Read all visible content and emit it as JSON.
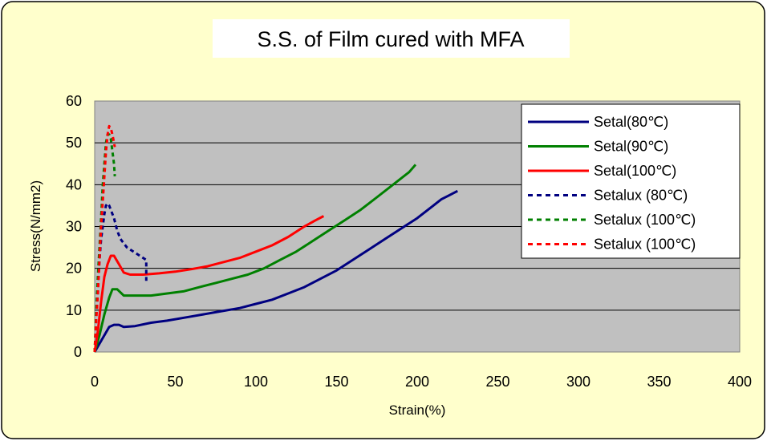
{
  "chart_data": {
    "type": "line",
    "title": "S.S. of Film cured with MFA",
    "xlabel": "Strain(%)",
    "ylabel": "Stress(N/mm2)",
    "xlim": [
      0,
      400
    ],
    "ylim": [
      0,
      60
    ],
    "x_ticks": [
      "0",
      "50",
      "100",
      "150",
      "200",
      "250",
      "300",
      "350",
      "400"
    ],
    "y_ticks": [
      "0",
      "10",
      "20",
      "30",
      "40",
      "50",
      "60"
    ],
    "grid": "horizontal",
    "legend_position": "top-right",
    "plot_background": "#c0c0c0",
    "panel_background": "#ffffcc",
    "series": [
      {
        "name": "Setal(80℃)",
        "color": "#000080",
        "dash": "solid",
        "points": [
          [
            0,
            0
          ],
          [
            3,
            2
          ],
          [
            6,
            4
          ],
          [
            9,
            6
          ],
          [
            12,
            6.5
          ],
          [
            15,
            6.5
          ],
          [
            18,
            6
          ],
          [
            25,
            6.2
          ],
          [
            35,
            7
          ],
          [
            45,
            7.5
          ],
          [
            60,
            8.5
          ],
          [
            75,
            9.5
          ],
          [
            90,
            10.5
          ],
          [
            100,
            11.5
          ],
          [
            110,
            12.5
          ],
          [
            120,
            14
          ],
          [
            130,
            15.5
          ],
          [
            140,
            17.5
          ],
          [
            150,
            19.5
          ],
          [
            160,
            22
          ],
          [
            170,
            24.5
          ],
          [
            180,
            27
          ],
          [
            190,
            29.5
          ],
          [
            200,
            32
          ],
          [
            210,
            35
          ],
          [
            215,
            36.5
          ],
          [
            220,
            37.5
          ],
          [
            225,
            38.5
          ]
        ]
      },
      {
        "name": "Setal(90℃)",
        "color": "#008000",
        "dash": "solid",
        "points": [
          [
            0,
            0
          ],
          [
            3,
            4
          ],
          [
            6,
            9
          ],
          [
            9,
            13
          ],
          [
            11,
            15
          ],
          [
            14,
            15
          ],
          [
            18,
            13.5
          ],
          [
            25,
            13.5
          ],
          [
            35,
            13.5
          ],
          [
            45,
            14
          ],
          [
            55,
            14.5
          ],
          [
            65,
            15.5
          ],
          [
            75,
            16.5
          ],
          [
            85,
            17.5
          ],
          [
            95,
            18.5
          ],
          [
            105,
            20
          ],
          [
            115,
            22
          ],
          [
            125,
            24
          ],
          [
            135,
            26.5
          ],
          [
            145,
            29
          ],
          [
            155,
            31.5
          ],
          [
            165,
            34
          ],
          [
            175,
            37
          ],
          [
            185,
            40
          ],
          [
            195,
            43
          ],
          [
            199,
            44.8
          ]
        ]
      },
      {
        "name": "Setal(100℃)",
        "color": "#ff0000",
        "dash": "solid",
        "points": [
          [
            0,
            0
          ],
          [
            2,
            5
          ],
          [
            4,
            12
          ],
          [
            6,
            18
          ],
          [
            8,
            21
          ],
          [
            10,
            23
          ],
          [
            12,
            23
          ],
          [
            15,
            21
          ],
          [
            18,
            19
          ],
          [
            22,
            18.5
          ],
          [
            30,
            18.5
          ],
          [
            40,
            18.8
          ],
          [
            50,
            19.2
          ],
          [
            60,
            19.8
          ],
          [
            70,
            20.5
          ],
          [
            80,
            21.5
          ],
          [
            90,
            22.5
          ],
          [
            100,
            24
          ],
          [
            110,
            25.5
          ],
          [
            120,
            27.5
          ],
          [
            130,
            30
          ],
          [
            137,
            31.5
          ],
          [
            142,
            32.5
          ]
        ]
      },
      {
        "name": "Setalux (80℃)",
        "color": "#000080",
        "dash": "dashed",
        "points": [
          [
            0,
            0
          ],
          [
            1,
            9
          ],
          [
            2,
            16
          ],
          [
            3,
            22
          ],
          [
            4,
            27
          ],
          [
            5,
            30
          ],
          [
            6,
            33
          ],
          [
            7,
            35
          ],
          [
            8,
            35.5
          ],
          [
            9,
            35
          ],
          [
            10,
            34
          ],
          [
            12,
            32
          ],
          [
            14,
            29
          ],
          [
            16,
            27
          ],
          [
            18,
            26
          ],
          [
            20,
            25
          ],
          [
            22,
            24.5
          ],
          [
            24,
            24
          ],
          [
            26,
            23.5
          ],
          [
            28,
            23
          ],
          [
            30,
            22.5
          ],
          [
            32,
            22
          ],
          [
            32,
            17
          ]
        ]
      },
      {
        "name": "Setalux (100℃)",
        "color": "#008000",
        "dash": "dashed",
        "points": [
          [
            0,
            0
          ],
          [
            1,
            10
          ],
          [
            2,
            18
          ],
          [
            3,
            25
          ],
          [
            4,
            32
          ],
          [
            5,
            40
          ],
          [
            6,
            45
          ],
          [
            7,
            50
          ],
          [
            8,
            52
          ],
          [
            9,
            52
          ],
          [
            10,
            51
          ],
          [
            11,
            48
          ],
          [
            12,
            45
          ],
          [
            12.5,
            42
          ]
        ]
      },
      {
        "name": "Setalux (100℃)",
        "color": "#ff0000",
        "dash": "dashed",
        "points": [
          [
            0,
            0
          ],
          [
            1,
            8
          ],
          [
            2,
            14
          ],
          [
            3,
            22
          ],
          [
            4,
            30
          ],
          [
            5,
            36
          ],
          [
            6,
            42
          ],
          [
            7,
            48
          ],
          [
            8,
            52
          ],
          [
            9,
            54
          ],
          [
            10,
            53.5
          ],
          [
            11,
            52
          ],
          [
            12,
            50
          ],
          [
            12.5,
            49
          ]
        ]
      }
    ]
  }
}
